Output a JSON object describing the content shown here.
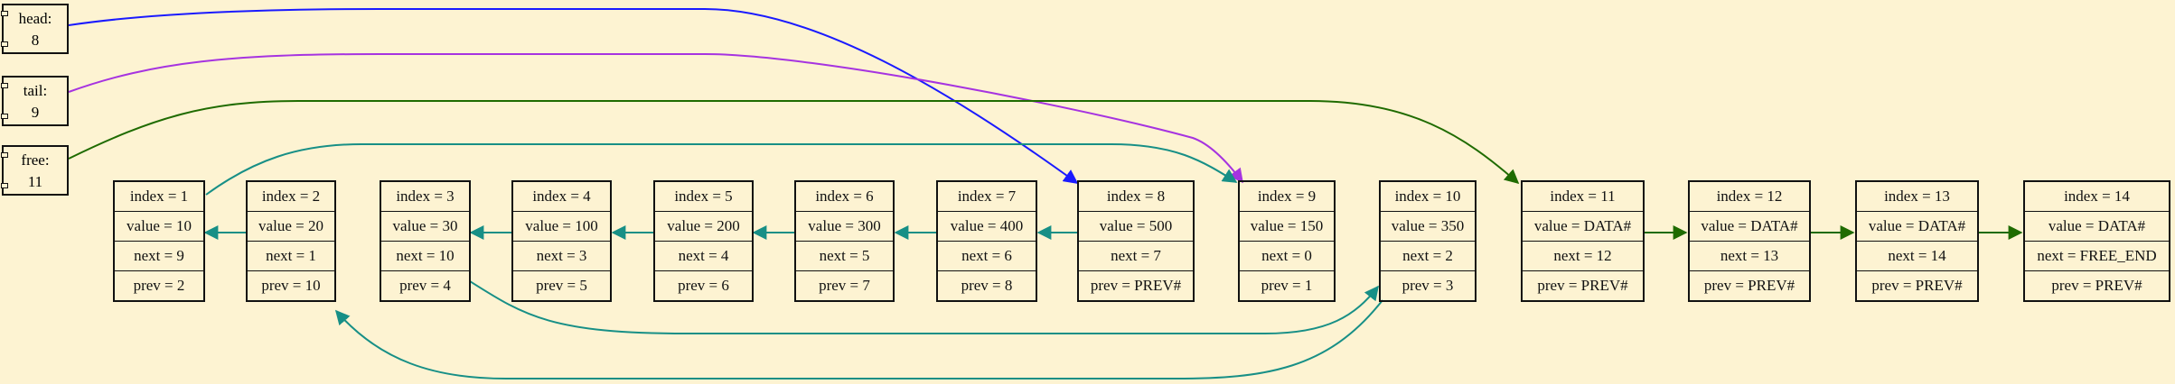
{
  "colors": {
    "background": "#fdf3d2",
    "head_arrow": "#1a1aff",
    "tail_arrow": "#a633e0",
    "free_arrow": "#1f6b00",
    "list_arrow": "#178f86",
    "border": "#111111"
  },
  "pointers": [
    {
      "label": "head:",
      "value": "8"
    },
    {
      "label": "tail:",
      "value": "9"
    },
    {
      "label": "free:",
      "value": "11"
    }
  ],
  "nodes": [
    {
      "index": "index = 1",
      "value": "value = 10",
      "next": "next = 9",
      "prev": "prev = 2"
    },
    {
      "index": "index = 2",
      "value": "value = 20",
      "next": "next = 1",
      "prev": "prev = 10"
    },
    {
      "index": "index = 3",
      "value": "value = 30",
      "next": "next = 10",
      "prev": "prev = 4"
    },
    {
      "index": "index = 4",
      "value": "value = 100",
      "next": "next = 3",
      "prev": "prev = 5"
    },
    {
      "index": "index = 5",
      "value": "value = 200",
      "next": "next = 4",
      "prev": "prev = 6"
    },
    {
      "index": "index = 6",
      "value": "value = 300",
      "next": "next = 5",
      "prev": "prev = 7"
    },
    {
      "index": "index = 7",
      "value": "value = 400",
      "next": "next = 6",
      "prev": "prev = 8"
    },
    {
      "index": "index = 8",
      "value": "value = 500",
      "next": "next = 7",
      "prev": "prev = PREV#"
    },
    {
      "index": "index = 9",
      "value": "value = 150",
      "next": "next = 0",
      "prev": "prev = 1"
    },
    {
      "index": "index = 10",
      "value": "value = 350",
      "next": "next = 2",
      "prev": "prev = 3"
    },
    {
      "index": "index = 11",
      "value": "value = DATA#",
      "next": "next = 12",
      "prev": "prev = PREV#"
    },
    {
      "index": "index = 12",
      "value": "value = DATA#",
      "next": "next = 13",
      "prev": "prev = PREV#"
    },
    {
      "index": "index = 13",
      "value": "value = DATA#",
      "next": "next = 14",
      "prev": "prev = PREV#"
    },
    {
      "index": "index = 14",
      "value": "value = DATA#",
      "next": "next = FREE_END",
      "prev": "prev = PREV#"
    }
  ]
}
